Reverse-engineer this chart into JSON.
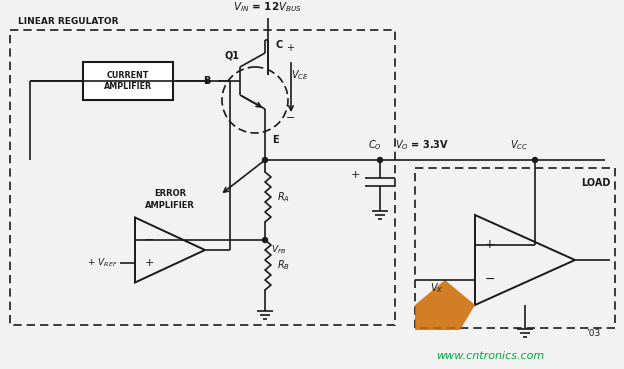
{
  "bg_color": "#f2f2f2",
  "line_color": "#1a1a1a",
  "watermark_color": "#00aa44",
  "orange_color": "#cc6600",
  "title_text": "LINEAR REGULATOR",
  "current_amp_text": "CURRENT\nAMPLIFIER",
  "error_amp_text": "ERROR\nAMPLIFIER",
  "load_text": "LOAD",
  "watermark": "www.cntronics.com",
  "year_text": "’03"
}
